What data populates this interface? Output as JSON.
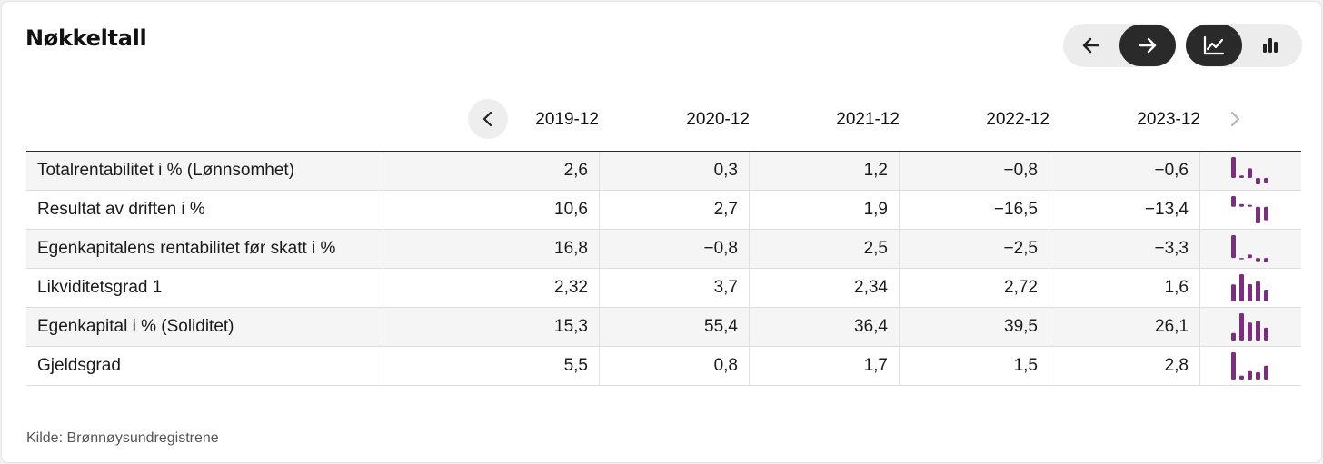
{
  "title": "Nøkkeltall",
  "controls": {
    "nav": [
      "arrow-left-icon",
      "arrow-right-icon"
    ],
    "view": [
      "line-chart-icon",
      "bar-chart-icon"
    ]
  },
  "colors": {
    "spark": "#7b2d7e",
    "active": "#2a2a2a"
  },
  "table": {
    "columns": [
      "2019-12",
      "2020-12",
      "2021-12",
      "2022-12",
      "2023-12"
    ],
    "rows": [
      {
        "label": "Totalrentabilitet i % (Lønnsomhet)",
        "values": [
          "2,6",
          "0,3",
          "1,2",
          "−0,8",
          "−0,6"
        ],
        "series": [
          2.6,
          0.3,
          1.2,
          -0.8,
          -0.6
        ]
      },
      {
        "label": "Resultat av driften i %",
        "values": [
          "10,6",
          "2,7",
          "1,9",
          "−16,5",
          "−13,4"
        ],
        "series": [
          10.6,
          2.7,
          1.9,
          -16.5,
          -13.4
        ]
      },
      {
        "label": "Egenkapitalens rentabilitet før skatt i %",
        "values": [
          "16,8",
          "−0,8",
          "2,5",
          "−2,5",
          "−3,3"
        ],
        "series": [
          16.8,
          -0.8,
          2.5,
          -2.5,
          -3.3
        ]
      },
      {
        "label": "Likviditetsgrad 1",
        "values": [
          "2,32",
          "3,7",
          "2,34",
          "2,72",
          "1,6"
        ],
        "series": [
          2.32,
          3.7,
          2.34,
          2.72,
          1.6
        ]
      },
      {
        "label": "Egenkapital i % (Soliditet)",
        "values": [
          "15,3",
          "55,4",
          "36,4",
          "39,5",
          "26,1"
        ],
        "series": [
          15.3,
          55.4,
          36.4,
          39.5,
          26.1
        ]
      },
      {
        "label": "Gjeldsgrad",
        "values": [
          "5,5",
          "0,8",
          "1,7",
          "1,5",
          "2,8"
        ],
        "series": [
          5.5,
          0.8,
          1.7,
          1.5,
          2.8
        ]
      }
    ]
  },
  "footer": "Kilde: Brønnøysundregistrene"
}
